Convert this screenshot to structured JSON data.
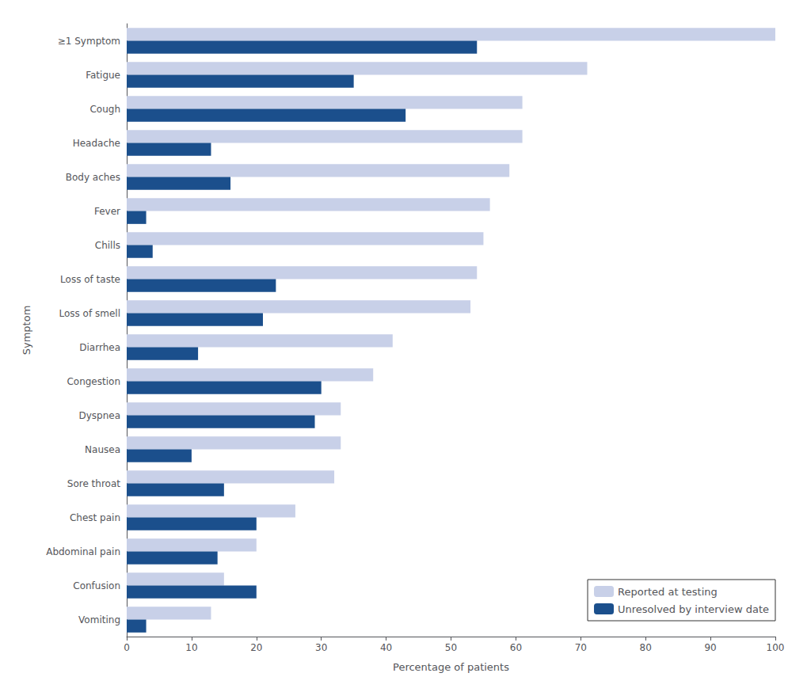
{
  "chart_data": {
    "type": "bar",
    "orientation": "horizontal",
    "xlabel": "Percentage of patients",
    "ylabel": "Symptom",
    "categories": [
      "≥1 Symptom",
      "Fatigue",
      "Cough",
      "Headache",
      "Body aches",
      "Fever",
      "Chills",
      "Loss of taste",
      "Loss of smell",
      "Diarrhea",
      "Congestion",
      "Dyspnea",
      "Nausea",
      "Sore throat",
      "Chest pain",
      "Abdominal pain",
      "Confusion",
      "Vomiting"
    ],
    "series": [
      {
        "name": "Reported at testing",
        "color": "#c8d0e8",
        "values": [
          100,
          71,
          61,
          61,
          59,
          56,
          55,
          54,
          53,
          41,
          38,
          33,
          33,
          32,
          26,
          20,
          15,
          13
        ]
      },
      {
        "name": "Unresolved by interview date",
        "color": "#1b4f8c",
        "values": [
          54,
          35,
          43,
          13,
          16,
          3,
          4,
          23,
          21,
          11,
          30,
          29,
          10,
          15,
          20,
          14,
          20,
          3
        ]
      }
    ],
    "xlim": [
      0,
      100
    ],
    "xticks": [
      0,
      10,
      20,
      30,
      40,
      50,
      60,
      70,
      80,
      90,
      100
    ],
    "grid": false,
    "legend": "lower right"
  }
}
